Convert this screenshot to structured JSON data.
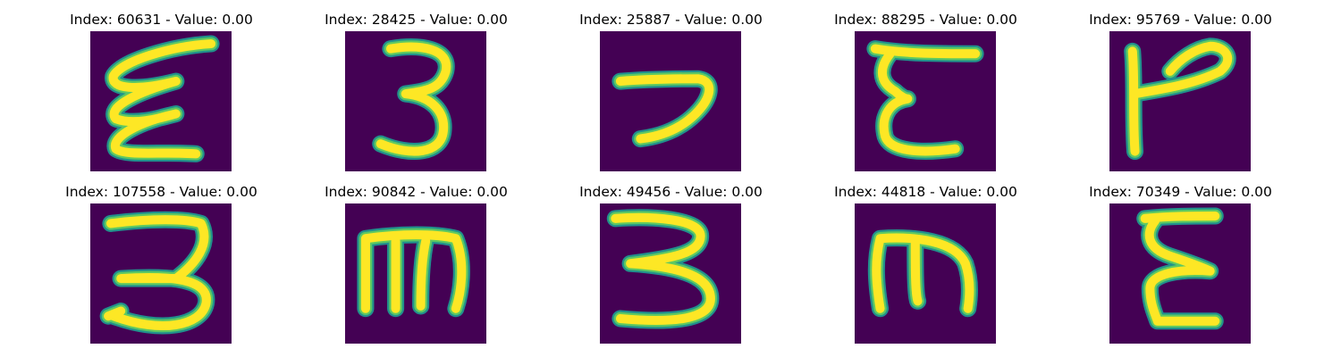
{
  "panels": [
    {
      "title": "Index: 60631 - Value: 0.00",
      "icon": "handwritten-glyph-curly-e"
    },
    {
      "title": "Index: 28425 - Value: 0.00",
      "icon": "handwritten-glyph-3"
    },
    {
      "title": "Index: 25887 - Value: 0.00",
      "icon": "handwritten-glyph-hook"
    },
    {
      "title": "Index: 88295 - Value: 0.00",
      "icon": "handwritten-glyph-epsilon"
    },
    {
      "title": "Index: 95769 - Value: 0.00",
      "icon": "handwritten-glyph-p"
    },
    {
      "title": "Index: 107558 - Value: 0.00",
      "icon": "handwritten-glyph-3"
    },
    {
      "title": "Index: 90842 - Value: 0.00",
      "icon": "handwritten-glyph-m"
    },
    {
      "title": "Index: 49456 - Value: 0.00",
      "icon": "handwritten-glyph-3"
    },
    {
      "title": "Index: 44818 - Value: 0.00",
      "icon": "handwritten-glyph-m"
    },
    {
      "title": "Index: 70349 - Value: 0.00",
      "icon": "handwritten-glyph-epsilon"
    }
  ],
  "colors": {
    "background": "#440154",
    "stroke_edge": "#21918c",
    "stroke_mid": "#5ec962",
    "stroke_core": "#fde725"
  }
}
